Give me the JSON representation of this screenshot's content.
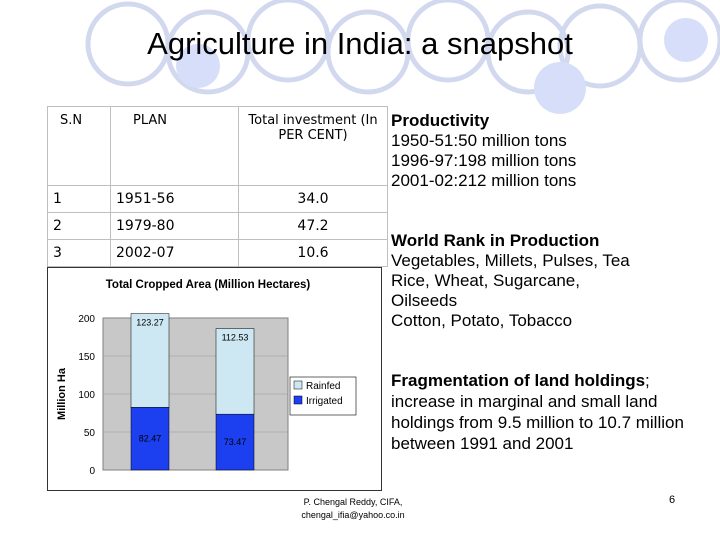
{
  "title": "Agriculture in India: a snapshot",
  "plan_table": {
    "headers": [
      "S.N",
      "PLAN",
      "Total investment (In PER CENT)"
    ],
    "rows": [
      {
        "sn": "1",
        "plan": "1951-56",
        "investment": "34.0"
      },
      {
        "sn": "2",
        "plan": "1979-80",
        "investment": "47.2"
      },
      {
        "sn": "3",
        "plan": "2002-07",
        "investment": "10.6"
      }
    ]
  },
  "chart_data": {
    "type": "bar",
    "stacked": true,
    "title": "Total Cropped Area (Million Hectares)",
    "ylabel": "Million Ha",
    "xlabel": "",
    "ylim": [
      0,
      200
    ],
    "yticks": [
      "0",
      "50",
      "100",
      "150",
      "200"
    ],
    "categories": [
      "",
      ""
    ],
    "series": [
      {
        "name": "Irrigated",
        "values": [
          82.47,
          73.47
        ],
        "labels": [
          "82.47",
          "73.47"
        ]
      },
      {
        "name": "Rainfed",
        "values": [
          123.27,
          112.53
        ],
        "labels": [
          "123.27",
          "112.53"
        ]
      }
    ],
    "legend": [
      "Rainfed",
      "Irrigated"
    ],
    "legend_position": "right"
  },
  "productivity": {
    "heading": "Productivity",
    "lines": [
      "1950-51:50 million tons",
      "1996-97:198 million tons",
      "2001-02:212 million tons"
    ]
  },
  "world_rank": {
    "heading": "World Rank in Production",
    "lines": [
      "Vegetables, Millets, Pulses, Tea",
      "Rice, Wheat, Sugarcane,",
      "Oilseeds",
      "Cotton, Potato, Tobacco"
    ]
  },
  "fragmentation": {
    "heading": "Fragmentation of land holdings",
    "text": "; increase in marginal and small land holdings from 9.5 million to 10.7 million between 1991 and 2001"
  },
  "footer": {
    "line1": "P. Chengal Reddy, CIFA,",
    "line2": "chengal_ifia@yahoo.co.in"
  },
  "page_number": "6",
  "colors": {
    "irrigated": "#1c3ff0",
    "rainfed": "#cde8f2",
    "plot_bg": "#c8c8c8",
    "circle": "#d0d8f0"
  }
}
